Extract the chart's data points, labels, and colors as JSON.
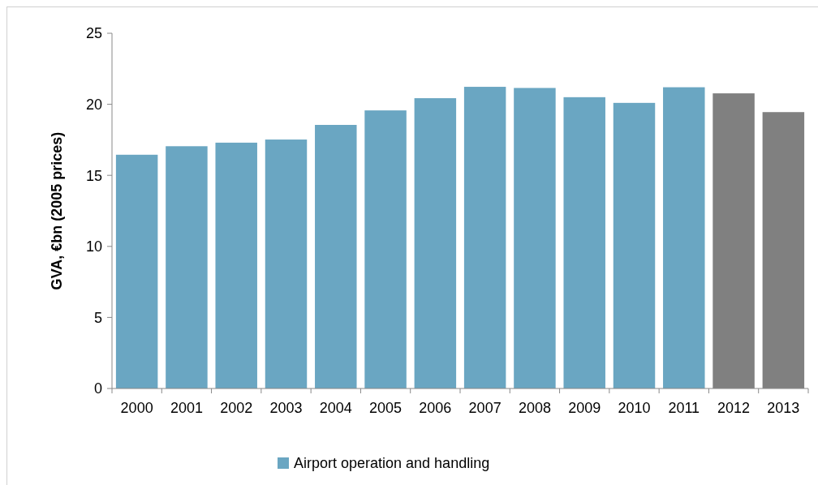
{
  "chart_data": {
    "type": "bar",
    "ylabel": "GVA, €bn (2005 prices)",
    "categories": [
      "2000",
      "2001",
      "2002",
      "2003",
      "2004",
      "2005",
      "2006",
      "2007",
      "2008",
      "2009",
      "2010",
      "2011",
      "2012",
      "2013"
    ],
    "series": [
      {
        "name": "Airport operation and handling",
        "color": "#6aa6c2",
        "colors": [
          "#6aa6c2",
          "#6aa6c2",
          "#6aa6c2",
          "#6aa6c2",
          "#6aa6c2",
          "#6aa6c2",
          "#6aa6c2",
          "#6aa6c2",
          "#6aa6c2",
          "#6aa6c2",
          "#6aa6c2",
          "#6aa6c2",
          "#808080",
          "#808080"
        ],
        "values": [
          16.45,
          17.05,
          17.3,
          17.52,
          18.55,
          19.57,
          20.43,
          21.23,
          21.15,
          20.5,
          20.1,
          21.2,
          20.77,
          19.45
        ]
      }
    ],
    "ylim": [
      0,
      25
    ],
    "yticks": [
      0,
      5,
      10,
      15,
      20,
      25
    ],
    "grid": false,
    "legend": "bottom"
  }
}
